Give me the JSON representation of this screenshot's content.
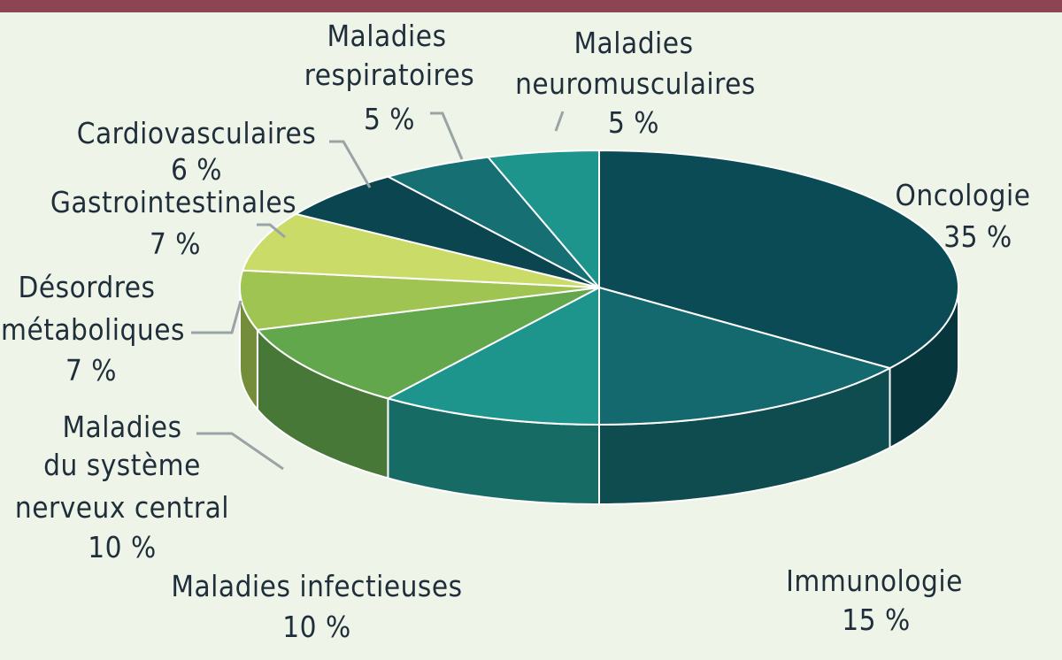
{
  "chart_data": {
    "type": "pie",
    "slices": [
      {
        "label": "Oncologie",
        "value": 35,
        "value_label": "35 %",
        "color": "#0a4b55"
      },
      {
        "label": "Immunologie",
        "value": 15,
        "value_label": "15 %",
        "color": "#14696f"
      },
      {
        "label": "Maladies infectieuses",
        "value": 10,
        "value_label": "10 %",
        "color": "#1e958c"
      },
      {
        "label": "Maladies du système nerveux central",
        "value": 10,
        "value_label": "10 %",
        "color": "#62a74c"
      },
      {
        "label": "Désordres métaboliques",
        "value": 7,
        "value_label": "7 %",
        "color": "#a0c452"
      },
      {
        "label": "Gastrointestinales",
        "value": 7,
        "value_label": "7 %",
        "color": "#cadb68"
      },
      {
        "label": "Cardiovasculaires",
        "value": 6,
        "value_label": "6 %",
        "color": "#0b4650"
      },
      {
        "label": "Maladies respiratoires",
        "value": 5,
        "value_label": "5 %",
        "color": "#166f73"
      },
      {
        "label": "Maladies neuromusculaires",
        "value": 5,
        "value_label": "5 %",
        "color": "#1e958c"
      }
    ]
  }
}
